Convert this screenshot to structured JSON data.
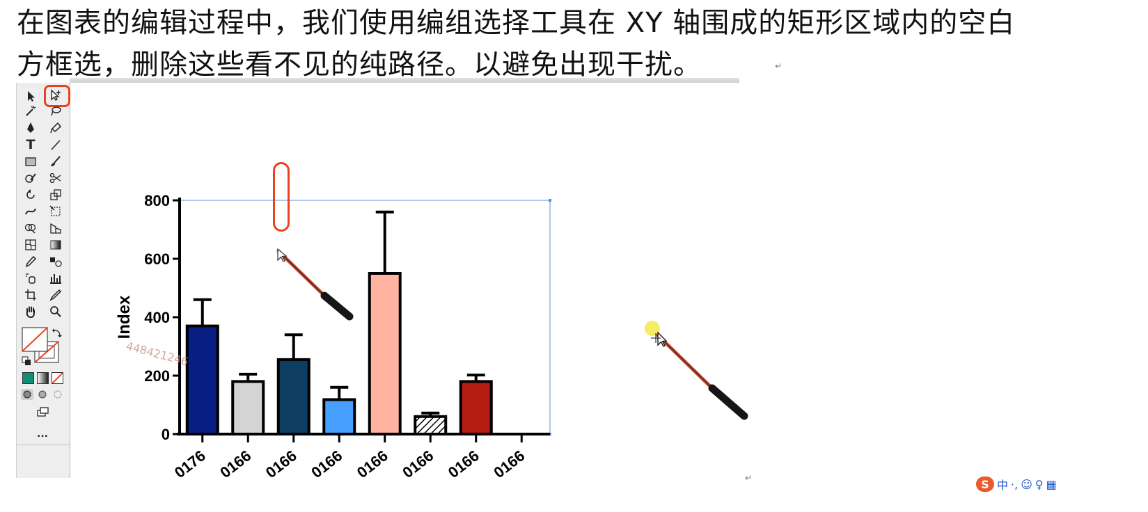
{
  "document": {
    "line1": "在图表的编辑过程中，我们使用编组选择工具在 XY 轴围成的矩形区域内的空白",
    "line2": "方框选，删除这些看不见的纯路径。以避免出现干扰。",
    "paragraph_mark": "↵"
  },
  "toolbar": {
    "selection_tool": "selection-arrow-icon",
    "active_tool": "group-selection-icon",
    "more_label": "...",
    "fill_color": "#ffffff",
    "stroke_color": "#ffffff",
    "swatch_colors": [
      "#0e8f76",
      "#888888",
      "#e8431c"
    ]
  },
  "annotation": {
    "color": "#e8431c"
  },
  "chart_data": {
    "type": "bar",
    "ylabel": "Index",
    "ylim": [
      0,
      800
    ],
    "yticks": [
      "0",
      "200",
      "400",
      "600",
      "800"
    ],
    "categories": [
      "0176",
      "0166",
      "0166",
      "0166",
      "0166",
      "0166",
      "0166",
      "0166"
    ],
    "values": [
      370,
      180,
      255,
      118,
      550,
      60,
      180,
      0
    ],
    "errors": [
      90,
      25,
      85,
      42,
      210,
      12,
      22,
      0
    ],
    "colors": [
      "#0a1f84",
      "#d4d4d4",
      "#0e3d62",
      "#47a0ff",
      "#ffb3a0",
      "hatch",
      "#b51c10",
      "none"
    ],
    "grid": false,
    "legend": "none",
    "watermark": "448421246"
  },
  "ime": {
    "lang_label": "中",
    "sep": "·,",
    "emoji": "☺",
    "mic": "♀",
    "keyboard": "▦"
  }
}
